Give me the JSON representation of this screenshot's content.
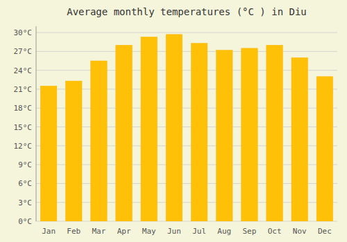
{
  "chart_data": {
    "type": "bar",
    "title": "Average monthly temperatures (°C ) in Diu",
    "categories": [
      "Jan",
      "Feb",
      "Mar",
      "Apr",
      "May",
      "Jun",
      "Jul",
      "Aug",
      "Sep",
      "Oct",
      "Nov",
      "Dec"
    ],
    "values": [
      21.5,
      22.3,
      25.5,
      28.0,
      29.3,
      29.7,
      28.3,
      27.2,
      27.5,
      28.0,
      26.0,
      23.0
    ],
    "color": "#FFC107",
    "ylim": [
      0,
      31
    ],
    "yticks": [
      {
        "value": 0,
        "label": "0°C"
      },
      {
        "value": 3,
        "label": "3°C"
      },
      {
        "value": 6,
        "label": "6°C"
      },
      {
        "value": 9,
        "label": "9°C"
      },
      {
        "value": 12,
        "label": "12°C"
      },
      {
        "value": 15,
        "label": "15°C"
      },
      {
        "value": 18,
        "label": "18°C"
      },
      {
        "value": 21,
        "label": "21°C"
      },
      {
        "value": 24,
        "label": "24°C"
      },
      {
        "value": 27,
        "label": "27°C"
      },
      {
        "value": 30,
        "label": "30°C"
      }
    ],
    "grid": true
  }
}
